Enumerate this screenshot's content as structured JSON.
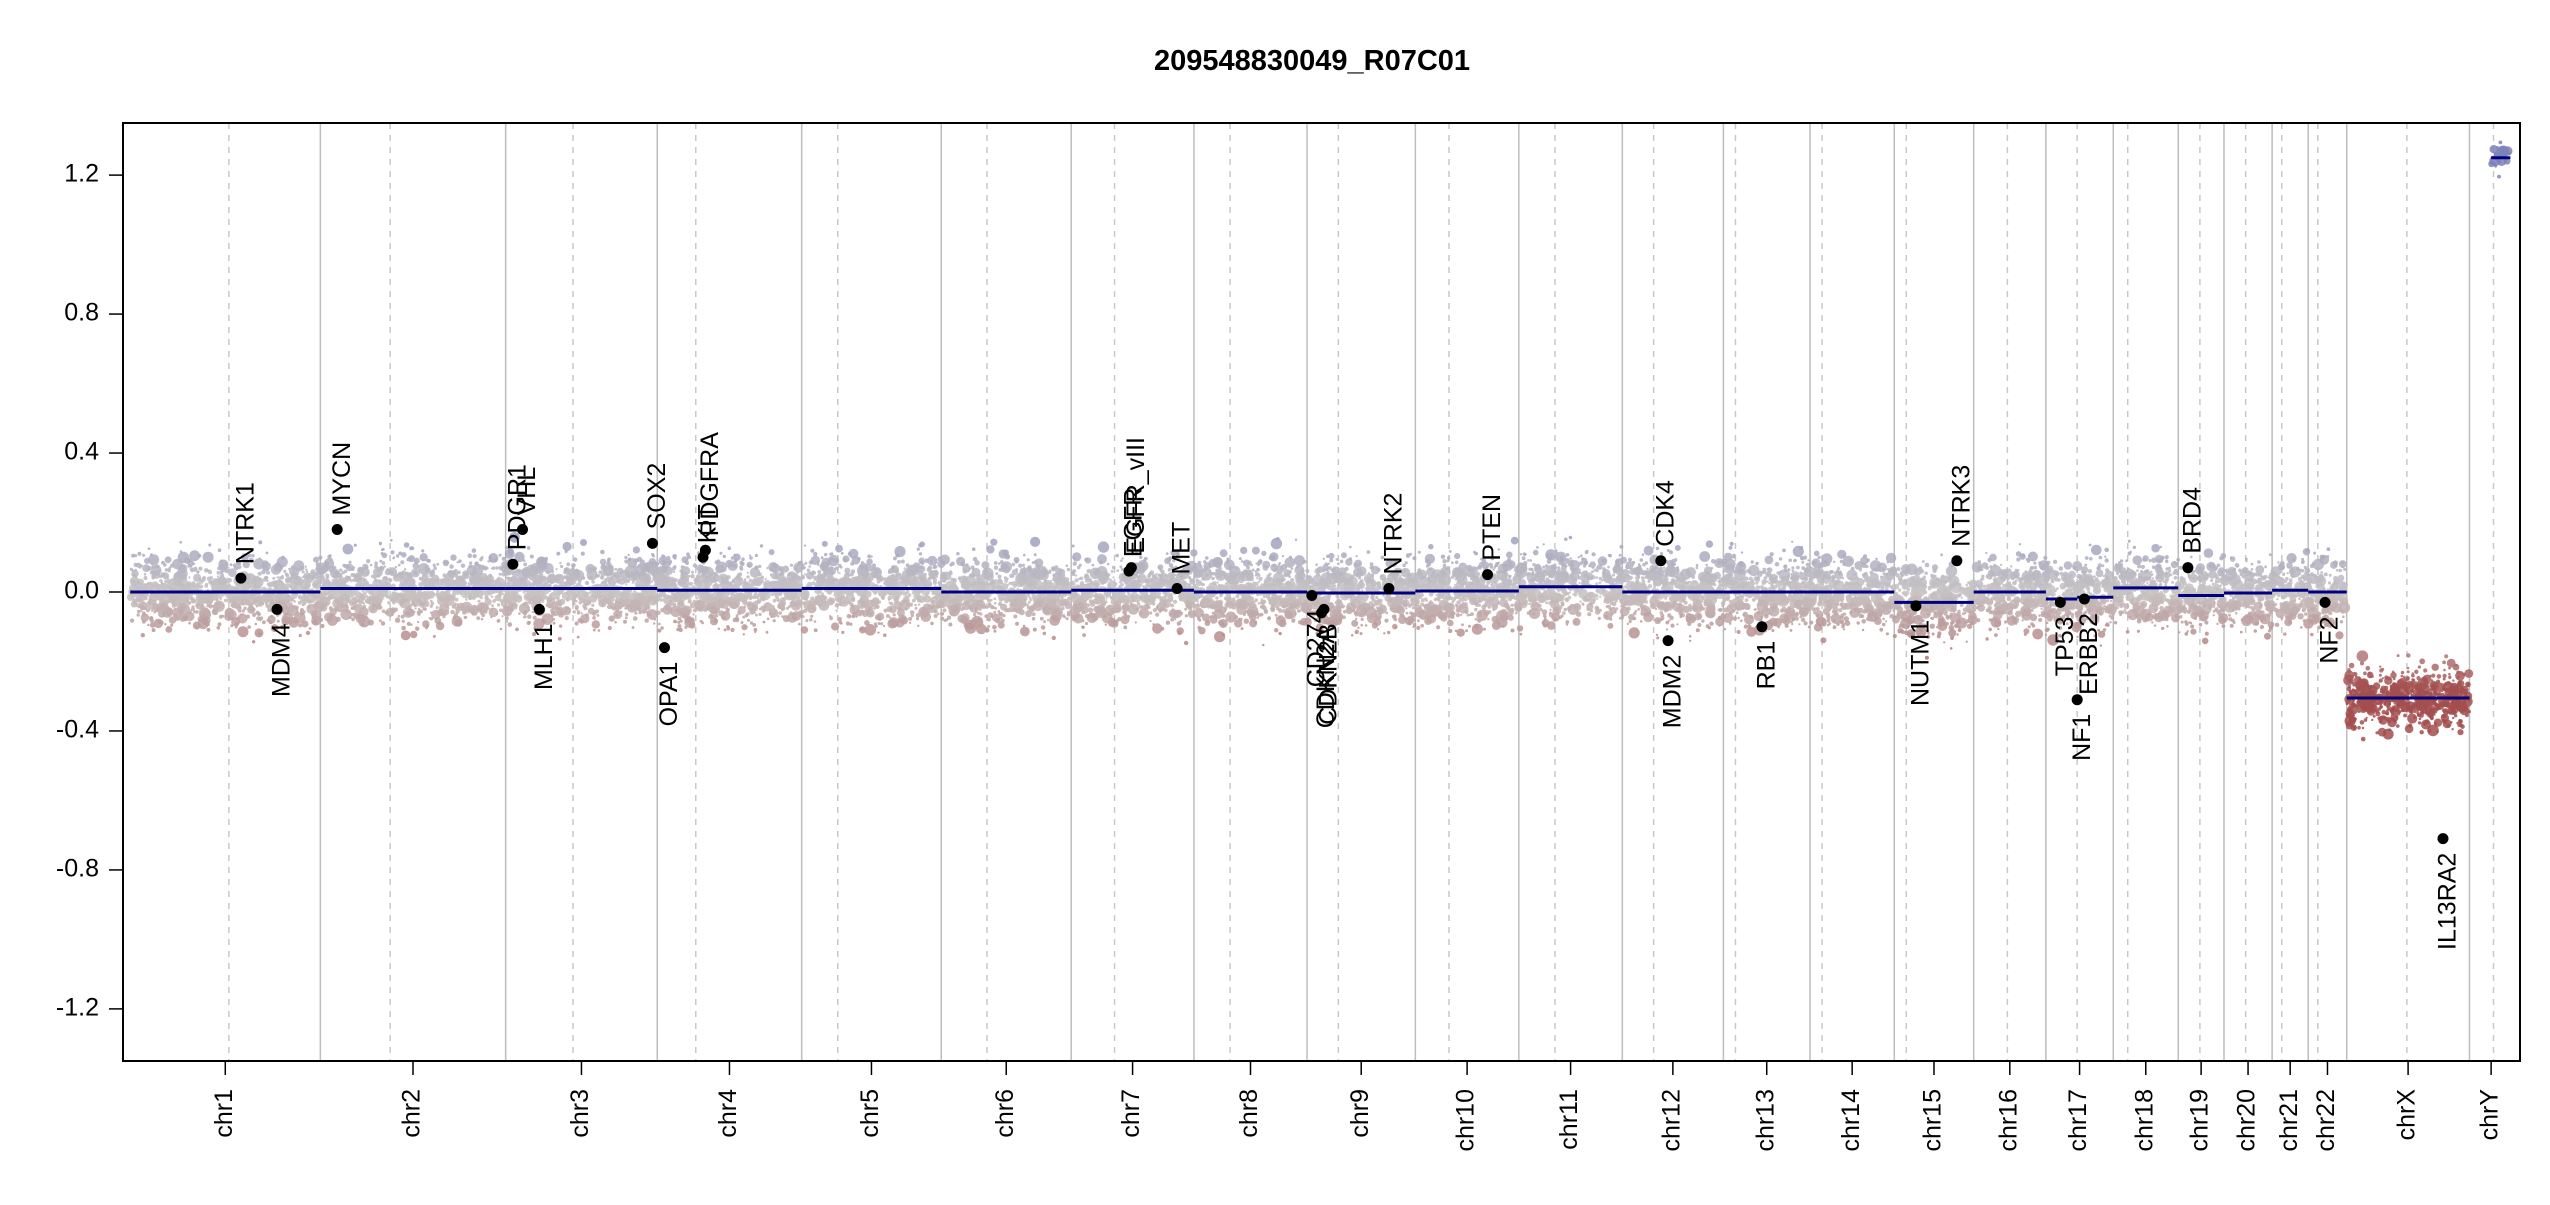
{
  "chart_data": {
    "type": "scatter",
    "title": "209548830049_R07C01",
    "xlabel": "",
    "ylabel": "",
    "ylim": [
      -1.35,
      1.35
    ],
    "yticks": [
      -1.2,
      -0.8,
      -0.4,
      0.0,
      0.4,
      0.8,
      1.2
    ],
    "ytick_labels": [
      "-1.2",
      "-0.8",
      "-0.4",
      "0.0",
      "0.4",
      "0.8",
      "1.2"
    ],
    "grid": false,
    "colors": {
      "positive": "#7c82b8",
      "neutral": "#c8c4c4",
      "negative": "#a34d4d",
      "segment": "#000080",
      "gene_dot": "#000000",
      "chrom_boundary": "#bdbdbd",
      "centromere": "#c8c8c8",
      "frame": "#000000"
    },
    "chromosomes": [
      {
        "name": "chr1",
        "start": 0.0,
        "end": 7.9,
        "centro": 4.1
      },
      {
        "name": "chr2",
        "start": 7.9,
        "end": 15.6,
        "centro": 10.8
      },
      {
        "name": "chr3",
        "start": 15.6,
        "end": 21.9,
        "centro": 18.4
      },
      {
        "name": "chr4",
        "start": 21.9,
        "end": 27.9,
        "centro": 23.5
      },
      {
        "name": "chr5",
        "start": 27.9,
        "end": 33.7,
        "centro": 29.4
      },
      {
        "name": "chr6",
        "start": 33.7,
        "end": 39.1,
        "centro": 35.6
      },
      {
        "name": "chr7",
        "start": 39.1,
        "end": 44.2,
        "centro": 40.9
      },
      {
        "name": "chr8",
        "start": 44.2,
        "end": 48.9,
        "centro": 45.7
      },
      {
        "name": "chr9",
        "start": 48.9,
        "end": 53.4,
        "centro": 50.2
      },
      {
        "name": "chr10",
        "start": 53.4,
        "end": 57.7,
        "centro": 54.8
      },
      {
        "name": "chr11",
        "start": 57.7,
        "end": 62.0,
        "centro": 59.2
      },
      {
        "name": "chr12",
        "start": 62.0,
        "end": 66.2,
        "centro": 63.3
      },
      {
        "name": "chr13",
        "start": 66.2,
        "end": 69.8,
        "centro": 66.7
      },
      {
        "name": "chr14",
        "start": 69.8,
        "end": 73.3,
        "centro": 70.3
      },
      {
        "name": "chr15",
        "start": 73.3,
        "end": 76.6,
        "centro": 73.8
      },
      {
        "name": "chr16",
        "start": 76.6,
        "end": 79.6,
        "centro": 78.0
      },
      {
        "name": "chr17",
        "start": 79.6,
        "end": 82.4,
        "centro": 80.9
      },
      {
        "name": "chr18",
        "start": 82.4,
        "end": 85.1,
        "centro": 83.0
      },
      {
        "name": "chr19",
        "start": 85.1,
        "end": 87.0,
        "centro": 86.0
      },
      {
        "name": "chr20",
        "start": 87.0,
        "end": 89.0,
        "centro": 87.9
      },
      {
        "name": "chr21",
        "start": 89.0,
        "end": 90.5,
        "centro": 89.4
      },
      {
        "name": "chr22",
        "start": 90.5,
        "end": 92.1,
        "centro": 90.9
      },
      {
        "name": "chrX",
        "start": 92.1,
        "end": 97.2,
        "centro": 94.6
      },
      {
        "name": "chrY",
        "start": 97.2,
        "end": 99.0,
        "centro": 98.2
      }
    ],
    "x_range": [
      -0.3,
      99.3
    ],
    "segments": [
      {
        "chrom": "chr1",
        "start": 0.0,
        "end": 7.9,
        "value": 0.0
      },
      {
        "chrom": "chr2",
        "start": 7.9,
        "end": 15.6,
        "value": 0.01
      },
      {
        "chrom": "chr3",
        "start": 15.6,
        "end": 21.9,
        "value": 0.01
      },
      {
        "chrom": "chr4",
        "start": 21.9,
        "end": 27.9,
        "value": 0.005
      },
      {
        "chrom": "chr5",
        "start": 27.9,
        "end": 33.7,
        "value": 0.01
      },
      {
        "chrom": "chr6",
        "start": 33.7,
        "end": 39.1,
        "value": 0.0
      },
      {
        "chrom": "chr7",
        "start": 39.1,
        "end": 44.2,
        "value": 0.005
      },
      {
        "chrom": "chr8",
        "start": 44.2,
        "end": 48.9,
        "value": 0.0
      },
      {
        "chrom": "chr9",
        "start": 48.9,
        "end": 53.4,
        "value": -0.003
      },
      {
        "chrom": "chr10",
        "start": 53.4,
        "end": 57.7,
        "value": 0.003
      },
      {
        "chrom": "chr11",
        "start": 57.7,
        "end": 62.0,
        "value": 0.015
      },
      {
        "chrom": "chr12",
        "start": 62.0,
        "end": 66.2,
        "value": 0.0
      },
      {
        "chrom": "chr13",
        "start": 66.2,
        "end": 69.8,
        "value": 0.0
      },
      {
        "chrom": "chr14",
        "start": 69.8,
        "end": 73.3,
        "value": 0.0
      },
      {
        "chrom": "chr15",
        "start": 73.3,
        "end": 76.6,
        "value": -0.03
      },
      {
        "chrom": "chr16",
        "start": 76.6,
        "end": 79.6,
        "value": 0.0
      },
      {
        "chrom": "chr17",
        "start": 79.6,
        "end": 80.9,
        "value": -0.02
      },
      {
        "chrom": "chr17",
        "start": 80.9,
        "end": 82.4,
        "value": -0.015
      },
      {
        "chrom": "chr18",
        "start": 82.4,
        "end": 85.1,
        "value": 0.012
      },
      {
        "chrom": "chr19",
        "start": 85.1,
        "end": 87.0,
        "value": -0.01
      },
      {
        "chrom": "chr20",
        "start": 87.0,
        "end": 89.0,
        "value": -0.003
      },
      {
        "chrom": "chr21",
        "start": 89.0,
        "end": 90.5,
        "value": 0.005
      },
      {
        "chrom": "chr22",
        "start": 90.5,
        "end": 92.1,
        "value": 0.0
      },
      {
        "chrom": "chrX",
        "start": 92.1,
        "end": 97.2,
        "value": -0.305
      },
      {
        "chrom": "chrY",
        "start": 98.1,
        "end": 98.9,
        "value": 1.25
      }
    ],
    "genes": [
      {
        "name": "NTRK1",
        "x": 4.6,
        "y": 0.04,
        "label_side": "above"
      },
      {
        "name": "MDM4",
        "x": 6.1,
        "y": -0.05,
        "label_side": "below"
      },
      {
        "name": "MYCN",
        "x": 8.6,
        "y": 0.18,
        "label_side": "above"
      },
      {
        "name": "PDGR1",
        "x": 15.9,
        "y": 0.08,
        "label_side": "above"
      },
      {
        "name": "VHL",
        "x": 16.3,
        "y": 0.18,
        "label_side": "above"
      },
      {
        "name": "MLH1",
        "x": 17.0,
        "y": -0.05,
        "label_side": "below"
      },
      {
        "name": "SOX2",
        "x": 21.7,
        "y": 0.14,
        "label_side": "above"
      },
      {
        "name": "OPA1",
        "x": 22.2,
        "y": -0.16,
        "label_side": "below"
      },
      {
        "name": "KIT",
        "x": 23.8,
        "y": 0.1,
        "label_side": "above"
      },
      {
        "name": "PDGFRA",
        "x": 23.9,
        "y": 0.12,
        "label_side": "above"
      },
      {
        "name": "EGFR",
        "x": 41.5,
        "y": 0.06,
        "label_side": "above"
      },
      {
        "name": "EGFR_vIII",
        "x": 41.6,
        "y": 0.07,
        "label_side": "above"
      },
      {
        "name": "MET",
        "x": 43.5,
        "y": 0.01,
        "label_side": "above"
      },
      {
        "name": "CD274",
        "x": 49.1,
        "y": -0.01,
        "label_side": "below"
      },
      {
        "name": "CDKN2A",
        "x": 49.5,
        "y": -0.06,
        "label_side": "below"
      },
      {
        "name": "CDKN2B",
        "x": 49.6,
        "y": -0.05,
        "label_side": "below"
      },
      {
        "name": "NTRK2",
        "x": 52.3,
        "y": 0.01,
        "label_side": "above"
      },
      {
        "name": "PTEN",
        "x": 56.4,
        "y": 0.05,
        "label_side": "above"
      },
      {
        "name": "CDK4",
        "x": 63.6,
        "y": 0.09,
        "label_side": "above"
      },
      {
        "name": "MDM2",
        "x": 63.9,
        "y": -0.14,
        "label_side": "below"
      },
      {
        "name": "RB1",
        "x": 67.8,
        "y": -0.1,
        "label_side": "below"
      },
      {
        "name": "NUTM1",
        "x": 74.2,
        "y": -0.04,
        "label_side": "below"
      },
      {
        "name": "NTRK3",
        "x": 75.9,
        "y": 0.09,
        "label_side": "above"
      },
      {
        "name": "TP53",
        "x": 80.2,
        "y": -0.03,
        "label_side": "below"
      },
      {
        "name": "NF1",
        "x": 80.9,
        "y": -0.31,
        "label_side": "below"
      },
      {
        "name": "ERBB2",
        "x": 81.2,
        "y": -0.02,
        "label_side": "below"
      },
      {
        "name": "BRD4",
        "x": 85.5,
        "y": 0.07,
        "label_side": "above"
      },
      {
        "name": "NF2",
        "x": 91.2,
        "y": -0.03,
        "label_side": "below"
      },
      {
        "name": "IL13RA2",
        "x": 96.1,
        "y": -0.71,
        "label_side": "below"
      }
    ]
  }
}
